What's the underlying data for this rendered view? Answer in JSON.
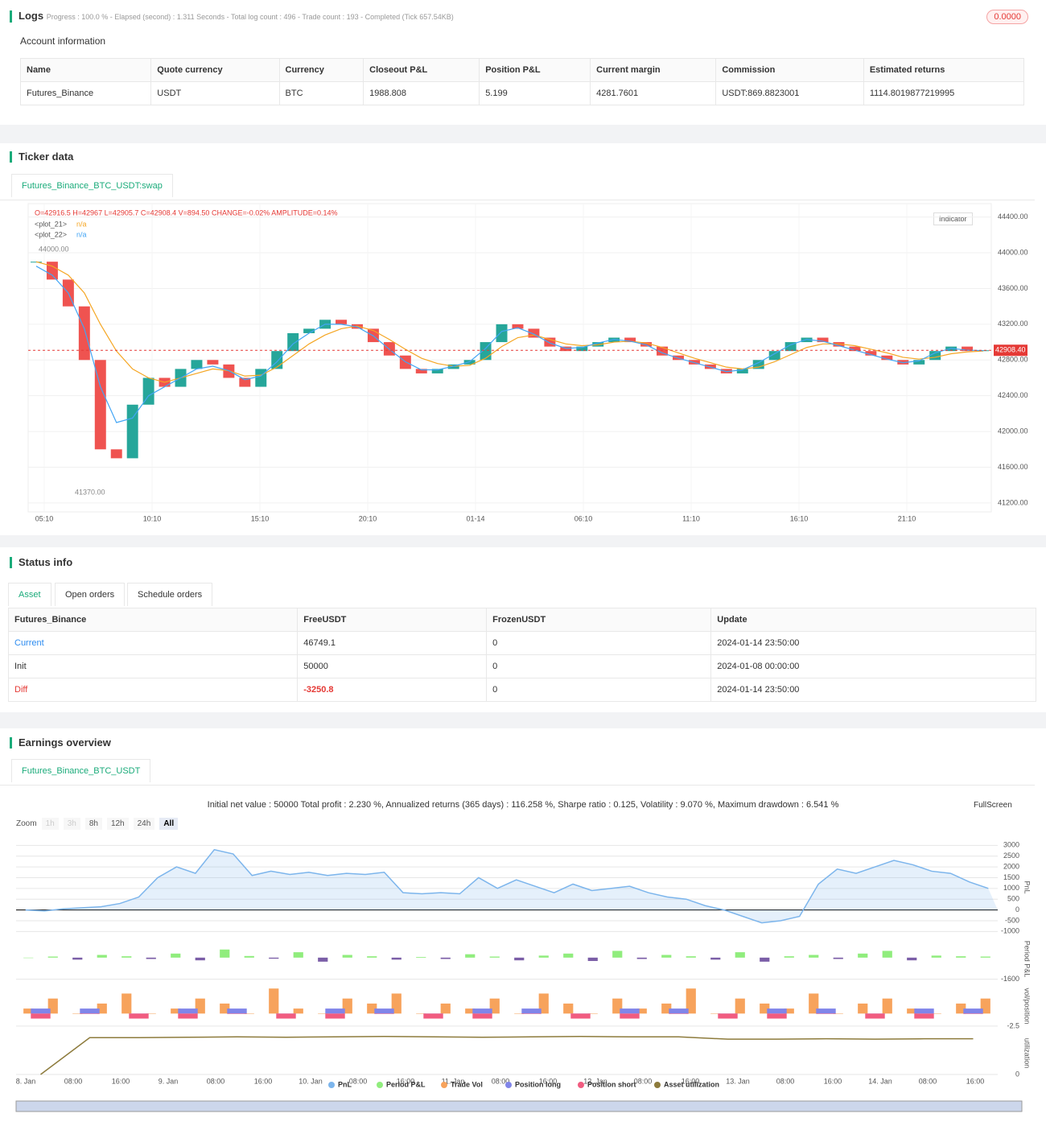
{
  "logs": {
    "title": "Logs",
    "status": "Progress : 100.0 % - Elapsed (second) : 1.311 Seconds - Total log count : 496 - Trade count : 193 - Completed (Tick 657.54KB)",
    "badge": "0.0000",
    "account_title": "Account information",
    "table": {
      "columns": [
        "Name",
        "Quote currency",
        "Currency",
        "Closeout P&L",
        "Position P&L",
        "Current margin",
        "Commission",
        "Estimated returns"
      ],
      "rows": [
        [
          "Futures_Binance",
          "USDT",
          "BTC",
          "1988.808",
          "5.199",
          "4281.7601",
          "USDT:869.8823001",
          "1114.8019877219995"
        ]
      ]
    }
  },
  "ticker": {
    "title": "Ticker data",
    "tab": "Futures_Binance_BTC_USDT:swap",
    "indicator": "Indicator"
  },
  "status": {
    "title": "Status info",
    "tabs": [
      "Asset",
      "Open orders",
      "Schedule orders"
    ],
    "table": {
      "columns": [
        "Futures_Binance",
        "FreeUSDT",
        "FrozenUSDT",
        "Update"
      ],
      "rows": [
        [
          "Current",
          "46749.1",
          "0",
          "2024-01-14 23:50:00"
        ],
        [
          "Init",
          "50000",
          "0",
          "2024-01-08 00:00:00"
        ],
        [
          "Diff",
          "-3250.8",
          "0",
          "2024-01-14 23:50:00"
        ]
      ]
    }
  },
  "earnings": {
    "title": "Earnings overview",
    "tab": "Futures_Binance_BTC_USDT",
    "summary": "Initial net value : 50000 Total profit : 2.230 %, Annualized returns (365 days) : 116.258 %, Sharpe ratio : 0.125, Volatility : 9.070 %, Maximum drawdown : 6.541 %",
    "zoom_label": "Zoom",
    "zoom": [
      "1h",
      "3h",
      "8h",
      "12h",
      "24h",
      "All"
    ],
    "fullscreen": "FullScreen"
  },
  "chart_data": [
    {
      "type": "candlestick",
      "ohlc": "O=42916.5 H=42967 L=42905.7 C=42908.4 V=894.50 CHANGE=-0.02% AMPLITUDE=0.14%",
      "x_labels": [
        "05:10",
        "10:10",
        "15:10",
        "20:10",
        "01-14",
        "06:10",
        "11:10",
        "16:10",
        "21:10"
      ],
      "ylim": [
        41100,
        44550
      ],
      "yticks": [
        {
          "value": 41200,
          "label": "41200.00"
        },
        {
          "value": 41600,
          "label": "41600.00"
        },
        {
          "value": 42000,
          "label": "42000.00"
        },
        {
          "value": 42400,
          "label": "42400.00"
        },
        {
          "value": 42800,
          "label": "42800.00"
        },
        {
          "value": 43200,
          "label": "43200.00"
        },
        {
          "value": 43600,
          "label": "43600.00"
        },
        {
          "value": 44000,
          "label": "44000.00"
        },
        {
          "value": 44400,
          "label": "44400.00"
        }
      ],
      "grid": true,
      "values": [
        43900,
        43700,
        43400,
        42800,
        41800,
        41700,
        42300,
        42600,
        42500,
        42700,
        42800,
        42750,
        42600,
        42500,
        42700,
        42900,
        43100,
        43150,
        43250,
        43200,
        43150,
        43000,
        42850,
        42700,
        42650,
        42700,
        42750,
        42800,
        43000,
        43200,
        43150,
        43050,
        42950,
        42900,
        42950,
        43000,
        43050,
        43000,
        42950,
        42850,
        42800,
        42750,
        42700,
        42650,
        42700,
        42800,
        42900,
        43000,
        43050,
        43000,
        42950,
        42900,
        42850,
        42800,
        42750,
        42800,
        42900,
        42950,
        42900,
        42908.4
      ],
      "up_color": "#26a69a",
      "down_color": "#ef5350",
      "current": {
        "value": 42908.4,
        "label": "42908.40"
      },
      "high_label": "44000.00",
      "low_label": "41370.00",
      "series": [
        {
          "name": "<plot_21>",
          "value_text": "n/a",
          "color": "#f5a623",
          "values": [
            43900,
            43850,
            43750,
            43550,
            43200,
            42900,
            42700,
            42600,
            42550,
            42600,
            42650,
            42700,
            42680,
            42620,
            42630,
            42720,
            42850,
            42980,
            43080,
            43150,
            43180,
            43130,
            43030,
            42920,
            42820,
            42760,
            42730,
            42740,
            42820,
            42950,
            43050,
            43080,
            43030,
            42980,
            42960,
            42970,
            43000,
            43010,
            42990,
            42940,
            42880,
            42820,
            42770,
            42720,
            42700,
            42720,
            42780,
            42860,
            42940,
            42980,
            42980,
            42960,
            42920,
            42880,
            42830,
            42810,
            42830,
            42870,
            42890,
            42900
          ]
        },
        {
          "name": "<plot_22>",
          "value_text": "n/a",
          "color": "#42a5f5",
          "values": [
            43850,
            43750,
            43550,
            43150,
            42500,
            42100,
            42150,
            42400,
            42500,
            42600,
            42700,
            42730,
            42680,
            42580,
            42620,
            42780,
            42980,
            43100,
            43200,
            43200,
            43170,
            43070,
            42920,
            42780,
            42690,
            42690,
            42730,
            42780,
            42930,
            43120,
            43160,
            43090,
            42990,
            42930,
            42940,
            42990,
            43030,
            43010,
            42970,
            42880,
            42820,
            42770,
            42720,
            42670,
            42690,
            42770,
            42870,
            42970,
            43030,
            43010,
            42960,
            42910,
            42860,
            42810,
            42770,
            42790,
            42880,
            42930,
            42910,
            42905
          ]
        }
      ]
    },
    {
      "type": "multi-panel",
      "x_labels": [
        "8. Jan",
        "08:00",
        "16:00",
        "9. Jan",
        "08:00",
        "16:00",
        "10. Jan",
        "08:00",
        "16:00",
        "11. Jan",
        "08:00",
        "16:00",
        "12. Jan",
        "08:00",
        "16:00",
        "13. Jan",
        "08:00",
        "16:00",
        "14. Jan",
        "08:00",
        "16:00"
      ],
      "series": [
        {
          "name": "PnL",
          "mark": "area",
          "color": "#7cb5ec",
          "axis_label": "PnL",
          "ylim": [
            -1100,
            3200
          ],
          "yticks": [
            3000,
            2500,
            2000,
            1500,
            1000,
            500,
            0,
            -500,
            -1000
          ],
          "values": [
            0,
            -50,
            50,
            100,
            150,
            300,
            600,
            1500,
            2000,
            1700,
            2800,
            2600,
            1600,
            1800,
            1650,
            1750,
            1600,
            1700,
            1650,
            1750,
            800,
            750,
            800,
            750,
            1500,
            1000,
            1400,
            1100,
            800,
            1200,
            900,
            1000,
            1100,
            800,
            600,
            500,
            200,
            0,
            -300,
            -600,
            -500,
            -300,
            1200,
            1900,
            1700,
            2000,
            2300,
            2100,
            1800,
            1700,
            1300,
            1000
          ]
        },
        {
          "name": "Period P&L",
          "mark": "bar",
          "color": "#90ed7d",
          "neg_color": "#7b5ea7",
          "axis_label": "Period P&L",
          "ylim": [
            -1800,
            1600
          ],
          "yticks": [
            -1600
          ],
          "values": [
            0,
            80,
            -150,
            200,
            100,
            -100,
            300,
            -200,
            600,
            120,
            -80,
            400,
            -300,
            200,
            100,
            -150,
            50,
            -100,
            250,
            80,
            -200,
            150,
            300,
            -250,
            500,
            -100,
            200,
            100,
            -150,
            400,
            -300,
            100,
            200,
            -100,
            300,
            500,
            -200,
            150,
            100,
            80
          ]
        },
        {
          "name": "Trade Vol",
          "mark": "bar",
          "color": "#f7a35c",
          "axis_label": "vol/position",
          "ylim": [
            -3,
            6
          ],
          "yticks": [
            -2.5
          ],
          "values": [
            1,
            3,
            0,
            2,
            4,
            0,
            1,
            3,
            2,
            0,
            5,
            1,
            0,
            3,
            2,
            4,
            0,
            2,
            1,
            3,
            0,
            4,
            2,
            0,
            3,
            1,
            2,
            5,
            0,
            3,
            2,
            1,
            4,
            0,
            2,
            3,
            1,
            0,
            2,
            3
          ]
        },
        {
          "name": "Position long",
          "mark": "bar",
          "color": "#8085e9",
          "ylim": [
            -3,
            6
          ],
          "values": [
            1,
            1,
            0,
            1,
            1,
            0,
            1,
            1,
            0,
            1,
            1,
            0,
            1,
            1,
            0,
            1,
            1,
            0,
            1,
            1
          ]
        },
        {
          "name": "Position short",
          "mark": "bar",
          "color": "#f15c80",
          "ylim": [
            -3,
            6
          ],
          "values": [
            -1,
            0,
            -1,
            -1,
            0,
            -1,
            -1,
            0,
            -1,
            -1,
            0,
            -1,
            -1,
            0,
            -1,
            -1,
            0,
            -1,
            -1,
            0
          ]
        },
        {
          "name": "Asset utilization",
          "mark": "line",
          "color": "#8d7b3c",
          "axis_label": "utilization",
          "ylim": [
            0,
            1.1
          ],
          "yticks": [
            0
          ],
          "values": [
            0,
            0.95,
            0.95,
            0.96,
            0.97,
            0.96,
            0.97,
            0.98,
            0.97,
            0.96,
            0.97,
            0.98,
            0.97,
            0.97,
            0.91,
            0.91,
            0.92,
            0.91,
            0.92,
            0.92
          ]
        }
      ]
    }
  ]
}
